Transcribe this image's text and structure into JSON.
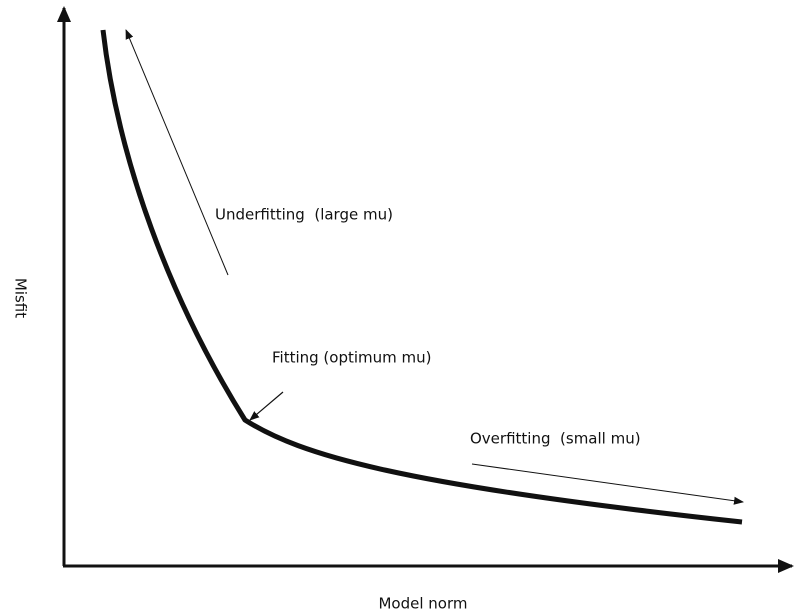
{
  "axes": {
    "x_label": "Model norm",
    "y_label": "Misfit"
  },
  "annotations": {
    "underfitting": "Underfitting  (large mu)",
    "fitting": "Fitting (optimum mu)",
    "overfitting": "Overfitting  (small mu)"
  }
}
